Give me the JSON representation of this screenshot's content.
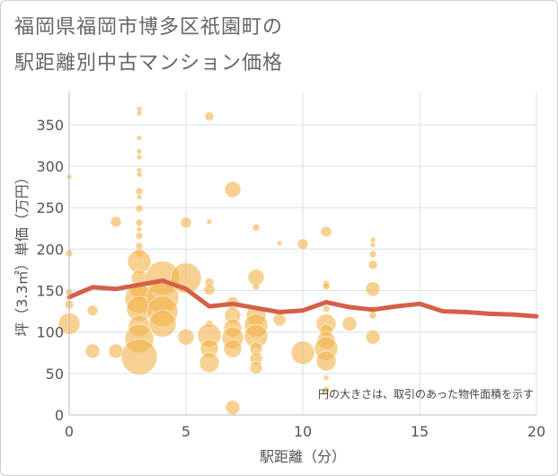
{
  "title_line1": "福岡県福岡市博多区祇園町の",
  "title_line2": "駅距離別中古マンション価格",
  "chart_data": {
    "type": "scatter",
    "xlabel": "駅距離（分）",
    "ylabel": "坪（3.3㎡）単価（万円）",
    "xlim": [
      0,
      20
    ],
    "ylim": [
      0,
      390
    ],
    "x_ticks": [
      0,
      5,
      10,
      15,
      20
    ],
    "y_ticks": [
      0,
      50,
      100,
      150,
      200,
      250,
      300,
      350
    ],
    "grid": true,
    "annotation": "円の大きさは、取引のあった物件面積を示す",
    "colors": {
      "bubble": "#f2b24a",
      "line": "#d4604a",
      "grid": "#d6e1ec"
    },
    "points": [
      {
        "x": 0,
        "y": 287,
        "s": 3
      },
      {
        "x": 0,
        "y": 195,
        "s": 4
      },
      {
        "x": 0,
        "y": 148,
        "s": 4
      },
      {
        "x": 0,
        "y": 133,
        "s": 5
      },
      {
        "x": 0,
        "y": 110,
        "s": 12
      },
      {
        "x": 1,
        "y": 126,
        "s": 6
      },
      {
        "x": 1,
        "y": 77,
        "s": 8
      },
      {
        "x": 2,
        "y": 233,
        "s": 6
      },
      {
        "x": 2,
        "y": 77,
        "s": 8
      },
      {
        "x": 3,
        "y": 369,
        "s": 3
      },
      {
        "x": 3,
        "y": 364,
        "s": 3
      },
      {
        "x": 3,
        "y": 334,
        "s": 3
      },
      {
        "x": 3,
        "y": 318,
        "s": 3
      },
      {
        "x": 3,
        "y": 311,
        "s": 3
      },
      {
        "x": 3,
        "y": 295,
        "s": 3
      },
      {
        "x": 3,
        "y": 290,
        "s": 3
      },
      {
        "x": 3,
        "y": 270,
        "s": 4
      },
      {
        "x": 3,
        "y": 263,
        "s": 3
      },
      {
        "x": 3,
        "y": 249,
        "s": 4
      },
      {
        "x": 3,
        "y": 232,
        "s": 4
      },
      {
        "x": 3,
        "y": 224,
        "s": 3
      },
      {
        "x": 3,
        "y": 216,
        "s": 4
      },
      {
        "x": 3,
        "y": 204,
        "s": 4
      },
      {
        "x": 3,
        "y": 196,
        "s": 5
      },
      {
        "x": 3,
        "y": 185,
        "s": 13
      },
      {
        "x": 3,
        "y": 165,
        "s": 9
      },
      {
        "x": 3,
        "y": 150,
        "s": 10
      },
      {
        "x": 3,
        "y": 140,
        "s": 16
      },
      {
        "x": 3,
        "y": 128,
        "s": 14
      },
      {
        "x": 3,
        "y": 107,
        "s": 12
      },
      {
        "x": 3,
        "y": 92,
        "s": 16
      },
      {
        "x": 3,
        "y": 70,
        "s": 20
      },
      {
        "x": 4,
        "y": 165,
        "s": 19
      },
      {
        "x": 4,
        "y": 142,
        "s": 18
      },
      {
        "x": 4,
        "y": 125,
        "s": 17
      },
      {
        "x": 4,
        "y": 110,
        "s": 15
      },
      {
        "x": 5,
        "y": 232,
        "s": 6
      },
      {
        "x": 5,
        "y": 165,
        "s": 17
      },
      {
        "x": 5,
        "y": 94,
        "s": 9
      },
      {
        "x": 6,
        "y": 360,
        "s": 5
      },
      {
        "x": 6,
        "y": 233,
        "s": 3
      },
      {
        "x": 6,
        "y": 160,
        "s": 5
      },
      {
        "x": 6,
        "y": 151,
        "s": 6
      },
      {
        "x": 6,
        "y": 110,
        "s": 4
      },
      {
        "x": 6,
        "y": 96,
        "s": 13
      },
      {
        "x": 6,
        "y": 80,
        "s": 10
      },
      {
        "x": 6,
        "y": 63,
        "s": 11
      },
      {
        "x": 7,
        "y": 272,
        "s": 9
      },
      {
        "x": 7,
        "y": 135,
        "s": 7
      },
      {
        "x": 7,
        "y": 120,
        "s": 9
      },
      {
        "x": 7,
        "y": 105,
        "s": 10
      },
      {
        "x": 7,
        "y": 93,
        "s": 12
      },
      {
        "x": 7,
        "y": 80,
        "s": 10
      },
      {
        "x": 7,
        "y": 9,
        "s": 8
      },
      {
        "x": 8,
        "y": 226,
        "s": 4
      },
      {
        "x": 8,
        "y": 166,
        "s": 9
      },
      {
        "x": 8,
        "y": 155,
        "s": 4
      },
      {
        "x": 8,
        "y": 120,
        "s": 11
      },
      {
        "x": 8,
        "y": 108,
        "s": 13
      },
      {
        "x": 8,
        "y": 95,
        "s": 13
      },
      {
        "x": 8,
        "y": 80,
        "s": 7
      },
      {
        "x": 8,
        "y": 68,
        "s": 7
      },
      {
        "x": 8,
        "y": 57,
        "s": 7
      },
      {
        "x": 9,
        "y": 207,
        "s": 3
      },
      {
        "x": 9,
        "y": 115,
        "s": 7
      },
      {
        "x": 10,
        "y": 206,
        "s": 6
      },
      {
        "x": 10,
        "y": 75,
        "s": 13
      },
      {
        "x": 11,
        "y": 221,
        "s": 6
      },
      {
        "x": 11,
        "y": 158,
        "s": 4
      },
      {
        "x": 11,
        "y": 155,
        "s": 4
      },
      {
        "x": 11,
        "y": 128,
        "s": 4
      },
      {
        "x": 11,
        "y": 110,
        "s": 11
      },
      {
        "x": 11,
        "y": 102,
        "s": 7
      },
      {
        "x": 11,
        "y": 90,
        "s": 10
      },
      {
        "x": 11,
        "y": 80,
        "s": 13
      },
      {
        "x": 11,
        "y": 65,
        "s": 11
      },
      {
        "x": 11,
        "y": 45,
        "s": 3
      },
      {
        "x": 11,
        "y": 30,
        "s": 4
      },
      {
        "x": 12,
        "y": 110,
        "s": 8
      },
      {
        "x": 13,
        "y": 211,
        "s": 3
      },
      {
        "x": 13,
        "y": 205,
        "s": 3
      },
      {
        "x": 13,
        "y": 194,
        "s": 4
      },
      {
        "x": 13,
        "y": 181,
        "s": 5
      },
      {
        "x": 13,
        "y": 152,
        "s": 8
      },
      {
        "x": 13,
        "y": 127,
        "s": 4
      },
      {
        "x": 13,
        "y": 120,
        "s": 4
      },
      {
        "x": 13,
        "y": 94,
        "s": 8
      }
    ],
    "series": [
      {
        "values": [
          {
            "x": 0,
            "y": 142
          },
          {
            "x": 1,
            "y": 154
          },
          {
            "x": 2,
            "y": 152
          },
          {
            "x": 3,
            "y": 157
          },
          {
            "x": 4,
            "y": 162
          },
          {
            "x": 5,
            "y": 152
          },
          {
            "x": 6,
            "y": 131
          },
          {
            "x": 7,
            "y": 134
          },
          {
            "x": 8,
            "y": 129
          },
          {
            "x": 9,
            "y": 124
          },
          {
            "x": 10,
            "y": 126
          },
          {
            "x": 11,
            "y": 136
          },
          {
            "x": 12,
            "y": 130
          },
          {
            "x": 13,
            "y": 127
          },
          {
            "x": 14,
            "y": 131
          },
          {
            "x": 15,
            "y": 134
          },
          {
            "x": 16,
            "y": 125
          },
          {
            "x": 17,
            "y": 124
          },
          {
            "x": 18,
            "y": 122
          },
          {
            "x": 19,
            "y": 121
          },
          {
            "x": 20,
            "y": 119
          }
        ]
      }
    ]
  }
}
